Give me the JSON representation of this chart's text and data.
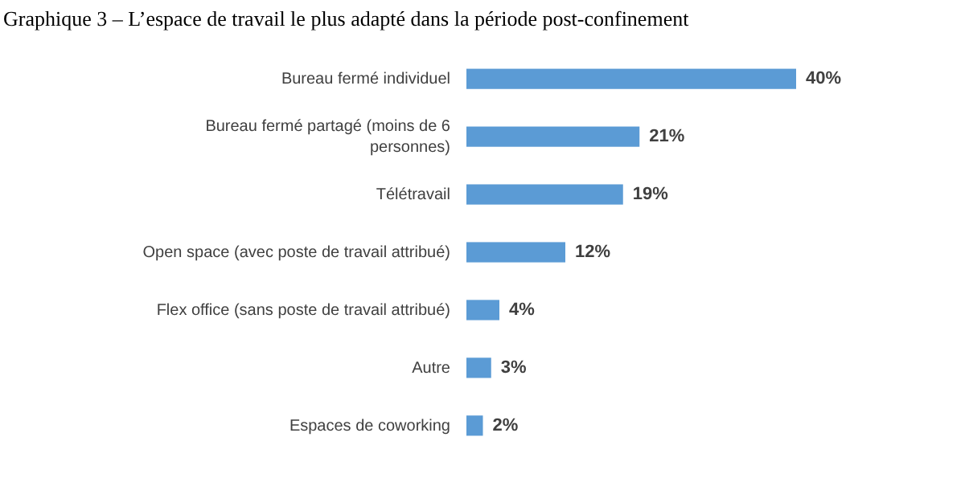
{
  "chart_data": {
    "type": "bar",
    "orientation": "horizontal",
    "title": "Graphique 3 – L’espace de travail le plus adapté dans la période post-confinement",
    "categories": [
      "Bureau fermé individuel",
      "Bureau fermé partagé (moins de 6 personnes)",
      "Télétravail",
      "Open space (avec poste de travail attribué)",
      "Flex office (sans poste de travail attribué)",
      "Autre",
      "Espaces de coworking"
    ],
    "values": [
      40,
      21,
      19,
      12,
      4,
      3,
      2
    ],
    "value_labels": [
      "40%",
      "21%",
      "19%",
      "12%",
      "4%",
      "3%",
      "2%"
    ],
    "color": "#5b9bd5"
  }
}
